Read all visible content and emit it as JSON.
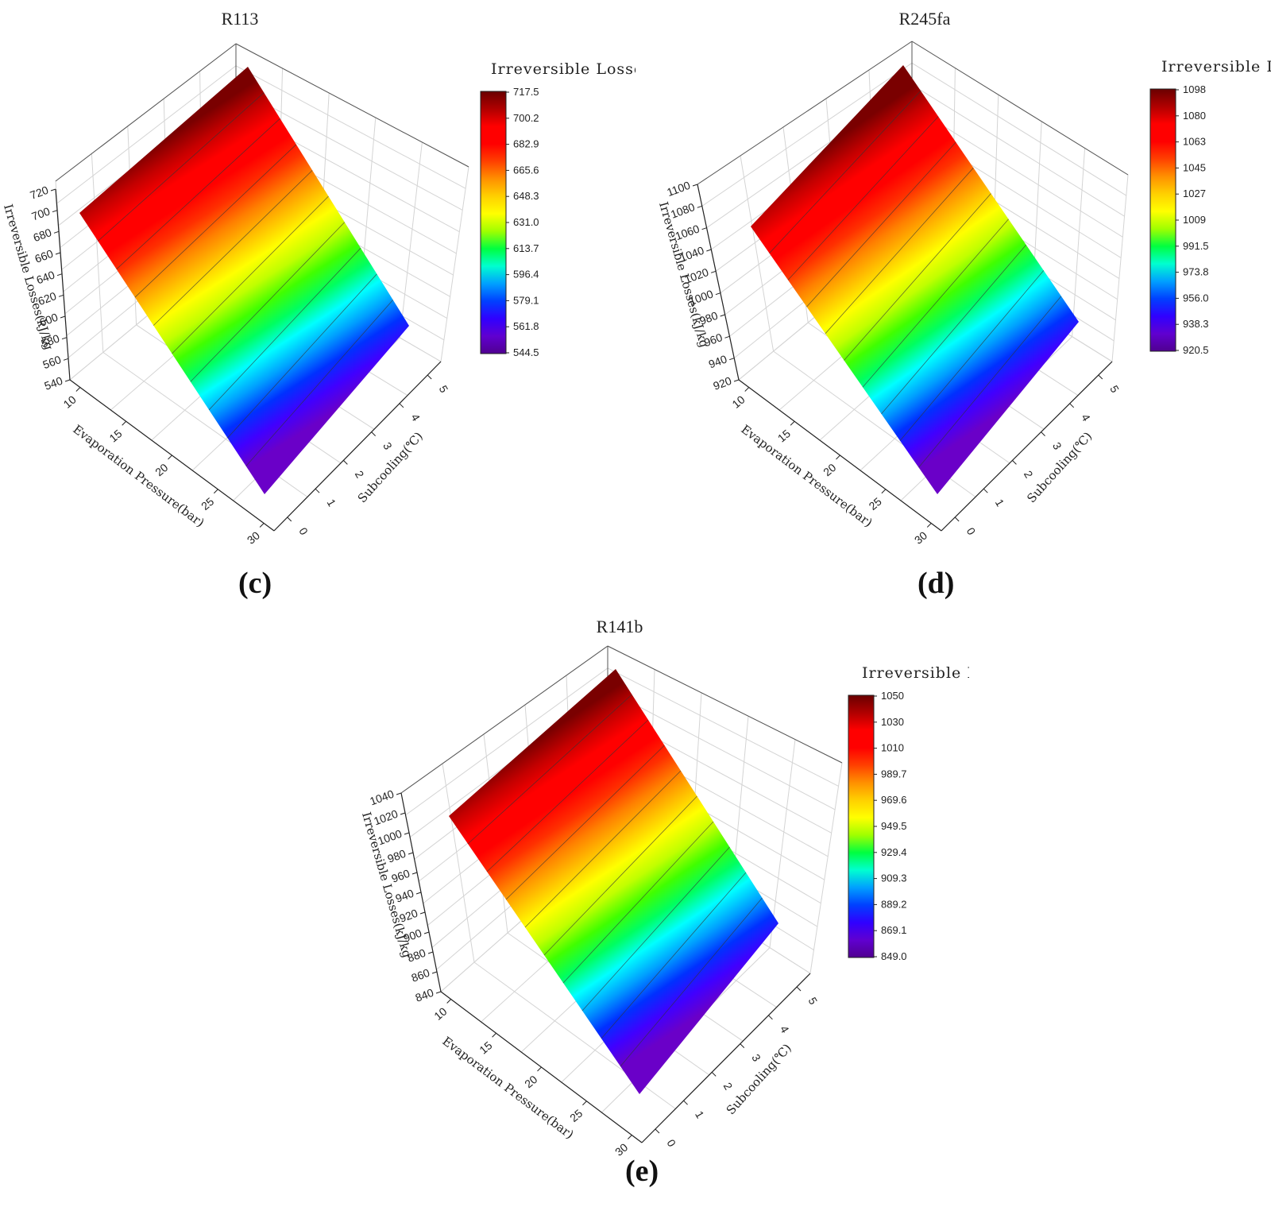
{
  "panels": [
    {
      "id": "c",
      "title": "R113",
      "label": "(c)",
      "colorbar_title": "Irreversible Losses",
      "colorbar_ticks": [
        "717.5",
        "700.2",
        "682.9",
        "665.6",
        "648.3",
        "631.0",
        "613.7",
        "596.4",
        "579.1",
        "561.8",
        "544.5"
      ],
      "z_ticks": [
        "720",
        "700",
        "680",
        "660",
        "640",
        "620",
        "600",
        "580",
        "560",
        "540"
      ],
      "x_ticks": [
        "10",
        "15",
        "20",
        "25",
        "30"
      ],
      "y_ticks": [
        "0",
        "1",
        "2",
        "3",
        "4",
        "5"
      ],
      "z_axis_label": "Irreversible Losses(kJ/kg",
      "x_axis_label": "Evaporation Pressure(bar)",
      "y_axis_label": "Subcooling(℃)"
    },
    {
      "id": "d",
      "title": "R245fa",
      "label": "(d)",
      "colorbar_title": "Irreversible Losses",
      "colorbar_ticks": [
        "1098",
        "1080",
        "1063",
        "1045",
        "1027",
        "1009",
        "991.5",
        "973.8",
        "956.0",
        "938.3",
        "920.5"
      ],
      "z_ticks": [
        "1100",
        "1080",
        "1060",
        "1040",
        "1020",
        "1000",
        "980",
        "960",
        "940",
        "920"
      ],
      "x_ticks": [
        "10",
        "15",
        "20",
        "25",
        "30"
      ],
      "y_ticks": [
        "0",
        "1",
        "2",
        "3",
        "4",
        "5"
      ],
      "z_axis_label": "Irreversible Losses(kJ/kg",
      "x_axis_label": "Evaporation Pressure(bar)",
      "y_axis_label": "Subcooling(℃)"
    },
    {
      "id": "e",
      "title": "R141b",
      "label": "(e)",
      "colorbar_title": "Irreversible Losses",
      "colorbar_ticks": [
        "1050",
        "1030",
        "1010",
        "989.7",
        "969.6",
        "949.5",
        "929.4",
        "909.3",
        "889.2",
        "869.1",
        "849.0"
      ],
      "z_ticks": [
        "1040",
        "1020",
        "1000",
        "980",
        "960",
        "940",
        "920",
        "900",
        "880",
        "860",
        "840"
      ],
      "x_ticks": [
        "10",
        "15",
        "20",
        "25",
        "30"
      ],
      "y_ticks": [
        "0",
        "1",
        "2",
        "3",
        "4",
        "5"
      ],
      "z_axis_label": "Irreversible Losses(kJ/kg",
      "x_axis_label": "Evaporation Pressure(bar)",
      "y_axis_label": "Subcooling(℃)"
    }
  ],
  "colormap": [
    "#4b0082",
    "#7f00ff",
    "#0000ff",
    "#00bfff",
    "#00ffbf",
    "#00ff00",
    "#bfff00",
    "#ffff00",
    "#ffbf00",
    "#ff7f00",
    "#ff0000",
    "#ff0000",
    "#e00000",
    "#7f0000"
  ],
  "chart_data": [
    {
      "type": "surface",
      "title": "R113",
      "xlabel": "Evaporation Pressure(bar)",
      "ylabel": "Subcooling(℃)",
      "zlabel": "Irreversible Losses(kJ/kg",
      "x": [
        10,
        30
      ],
      "y": [
        0,
        5
      ],
      "z": [
        [
          717.5,
          717.5
        ],
        [
          544.5,
          544.5
        ]
      ],
      "zlim": [
        540,
        720
      ],
      "colorbar_range": [
        544.5,
        717.5
      ]
    },
    {
      "type": "surface",
      "title": "R245fa",
      "xlabel": "Evaporation Pressure(bar)",
      "ylabel": "Subcooling(℃)",
      "zlabel": "Irreversible Losses(kJ/kg",
      "x": [
        10,
        30
      ],
      "y": [
        0,
        5
      ],
      "z": [
        [
          1098,
          1098
        ],
        [
          920.5,
          920.5
        ]
      ],
      "zlim": [
        920,
        1100
      ],
      "colorbar_range": [
        920.5,
        1098
      ]
    },
    {
      "type": "surface",
      "title": "R141b",
      "xlabel": "Evaporation Pressure(bar)",
      "ylabel": "Subcooling(℃)",
      "zlabel": "Irreversible Losses(kJ/kg",
      "x": [
        10,
        30
      ],
      "y": [
        0,
        5
      ],
      "z": [
        [
          1050,
          1050
        ],
        [
          849.0,
          849.0
        ]
      ],
      "zlim": [
        840,
        1040
      ],
      "colorbar_range": [
        849.0,
        1050
      ]
    }
  ]
}
